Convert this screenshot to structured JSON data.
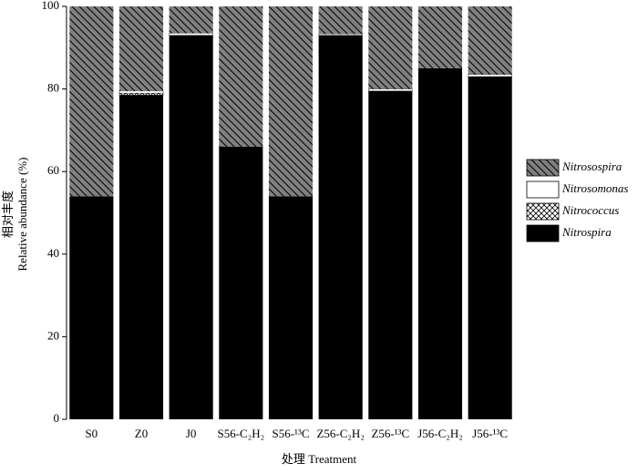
{
  "chart_data": {
    "type": "stacked_bar",
    "x_label": "处理 Treatment",
    "y_label": [
      "相对丰度",
      "Relative abundance (%)"
    ],
    "categories": [
      "S0",
      "Z0",
      "J0",
      "S56-C₂H₂",
      "S56-¹³C",
      "Z56-C₂H₂",
      "Z56-¹³C",
      "J56-C₂H₂",
      "J56-¹³C"
    ],
    "series": [
      {
        "name": "Nitrospira",
        "color": "#000000",
        "pattern": "solid",
        "values": [
          54,
          78.5,
          93,
          66,
          54,
          93,
          79.5,
          85,
          83
        ]
      },
      {
        "name": "Nitrococcus",
        "color": "#ffffff",
        "pattern": "crosshatch",
        "values": [
          0,
          0.5,
          0,
          0,
          0,
          0,
          0,
          0,
          0
        ]
      },
      {
        "name": "Nitrosomonas",
        "color": "#ffffff",
        "pattern": "solid",
        "values": [
          0,
          0.5,
          0.5,
          0,
          0,
          0.3,
          0.5,
          0,
          0.5
        ]
      },
      {
        "name": "Nitrosospira",
        "color": "#808080",
        "pattern": "diagonal",
        "values": [
          46,
          20.5,
          6.5,
          34,
          46,
          6.7,
          20,
          15,
          16.5
        ]
      }
    ],
    "ylim": [
      0,
      100
    ],
    "yticks": [
      0,
      20,
      40,
      60,
      80,
      100
    ],
    "grid": false,
    "legend": "right"
  }
}
